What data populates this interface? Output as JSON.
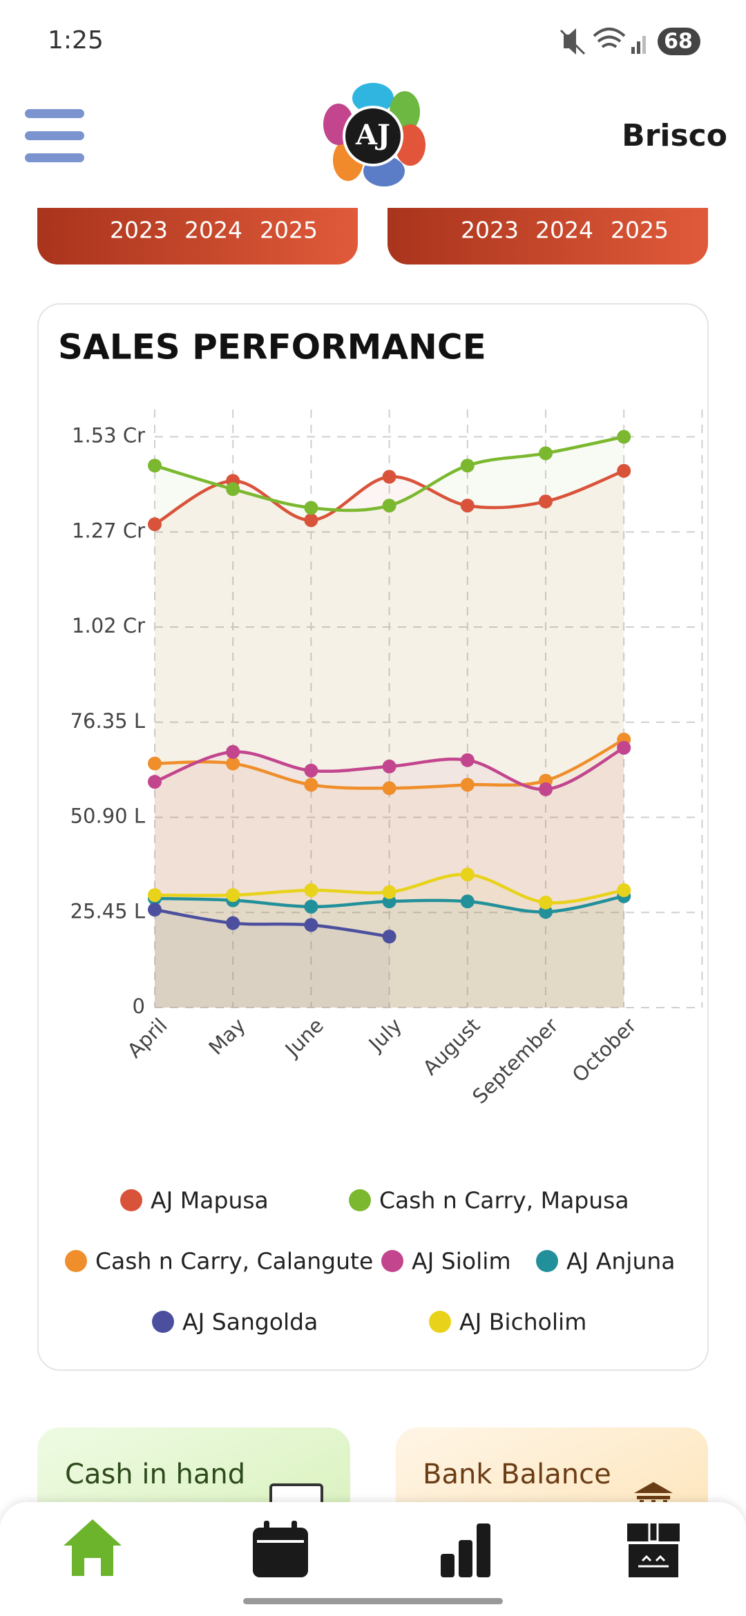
{
  "status_bar": {
    "time": "1:25",
    "battery": "68"
  },
  "header": {
    "logo": "AJ",
    "user": "Brisco"
  },
  "year_tabs": [
    [
      "2023",
      "2024",
      "2025"
    ],
    [
      "2023",
      "2024",
      "2025"
    ]
  ],
  "chart_data": {
    "type": "line",
    "title": "SALES PERFORMANCE",
    "categories": [
      "April",
      "May",
      "June",
      "July",
      "August",
      "September",
      "October"
    ],
    "ylim": [
      0,
      160
    ],
    "yticks": [
      0,
      {
        "value": 25.45,
        "label": "25.45 L"
      },
      {
        "value": 50.9,
        "label": "50.90 L"
      },
      {
        "value": 76.35,
        "label": "76.35 L"
      },
      {
        "value": 101.8,
        "label": "1.02 Cr"
      },
      {
        "value": 127.25,
        "label": "1.27 Cr"
      },
      {
        "value": 152.7,
        "label": "1.53 Cr"
      }
    ],
    "grid": true,
    "legend": "bottom",
    "series": [
      {
        "name": "AJ Mapusa",
        "color": "#d9533a",
        "values": [
          129.3,
          140.9,
          130.4,
          142.0,
          134.3,
          135.4,
          143.6
        ]
      },
      {
        "name": "Cash n Carry, Mapusa",
        "color": "#7cb82f",
        "values": [
          145.0,
          138.7,
          133.7,
          134.3,
          145.0,
          148.3,
          152.7
        ]
      },
      {
        "name": "Cash n Carry, Calangute",
        "color": "#ef8e2a",
        "values": [
          65.3,
          65.3,
          59.6,
          58.7,
          59.6,
          60.7,
          71.7
        ]
      },
      {
        "name": "AJ Siolim",
        "color": "#c2458e",
        "values": [
          60.4,
          68.4,
          63.4,
          64.5,
          66.2,
          58.4,
          69.5
        ]
      },
      {
        "name": "AJ Anjuna",
        "color": "#22909a",
        "values": [
          29.2,
          28.7,
          27.0,
          28.4,
          28.4,
          25.6,
          29.8
        ]
      },
      {
        "name": "AJ Sangolda",
        "color": "#4b4f9e",
        "values": [
          26.2,
          22.6,
          22.1,
          19.0,
          null,
          null,
          null
        ]
      },
      {
        "name": "AJ Bicholim",
        "color": "#e8d21a",
        "values": [
          30.1,
          30.1,
          31.4,
          30.9,
          35.6,
          28.1,
          31.4
        ]
      }
    ]
  },
  "summary_cards": [
    {
      "title": "Cash in hand"
    },
    {
      "title": "Bank Balance"
    }
  ]
}
